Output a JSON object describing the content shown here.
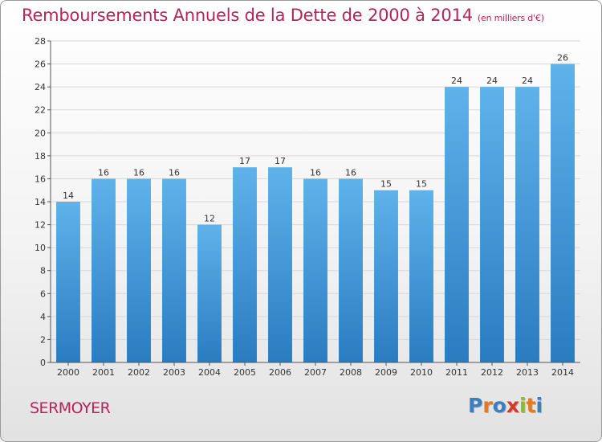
{
  "title": "Remboursements Annuels de la Dette de 2000 à 2014",
  "subtitle": "(en milliers d'€)",
  "location": "SERMOYER",
  "logo": {
    "text": "Proxiti",
    "letters": [
      "P",
      "r",
      "o",
      "x",
      "i",
      "t",
      "i"
    ],
    "colors": [
      "#3a7fc4",
      "#e8781e",
      "#3a7fc4",
      "#d63a2a",
      "#8bbd2b",
      "#e8781e",
      "#3a7fc4"
    ]
  },
  "colors": {
    "title": "#b5245a",
    "bar_light": "#5fb2ea",
    "bar_dark": "#2a7cc0",
    "axis": "#555555",
    "grid": "#d8d8d8"
  },
  "chart_data": {
    "type": "bar",
    "title": "Remboursements Annuels de la Dette de 2000 à 2014",
    "xlabel": "",
    "ylabel": "",
    "categories": [
      "2000",
      "2001",
      "2002",
      "2003",
      "2004",
      "2005",
      "2006",
      "2007",
      "2008",
      "2009",
      "2010",
      "2011",
      "2012",
      "2013",
      "2014"
    ],
    "values": [
      14,
      16,
      16,
      16,
      12,
      17,
      17,
      16,
      16,
      15,
      15,
      24,
      24,
      24,
      26
    ],
    "ylim": [
      0,
      28
    ],
    "yticks": [
      0,
      2,
      4,
      6,
      8,
      10,
      12,
      14,
      16,
      18,
      20,
      22,
      24,
      26,
      28
    ],
    "grid": true
  }
}
